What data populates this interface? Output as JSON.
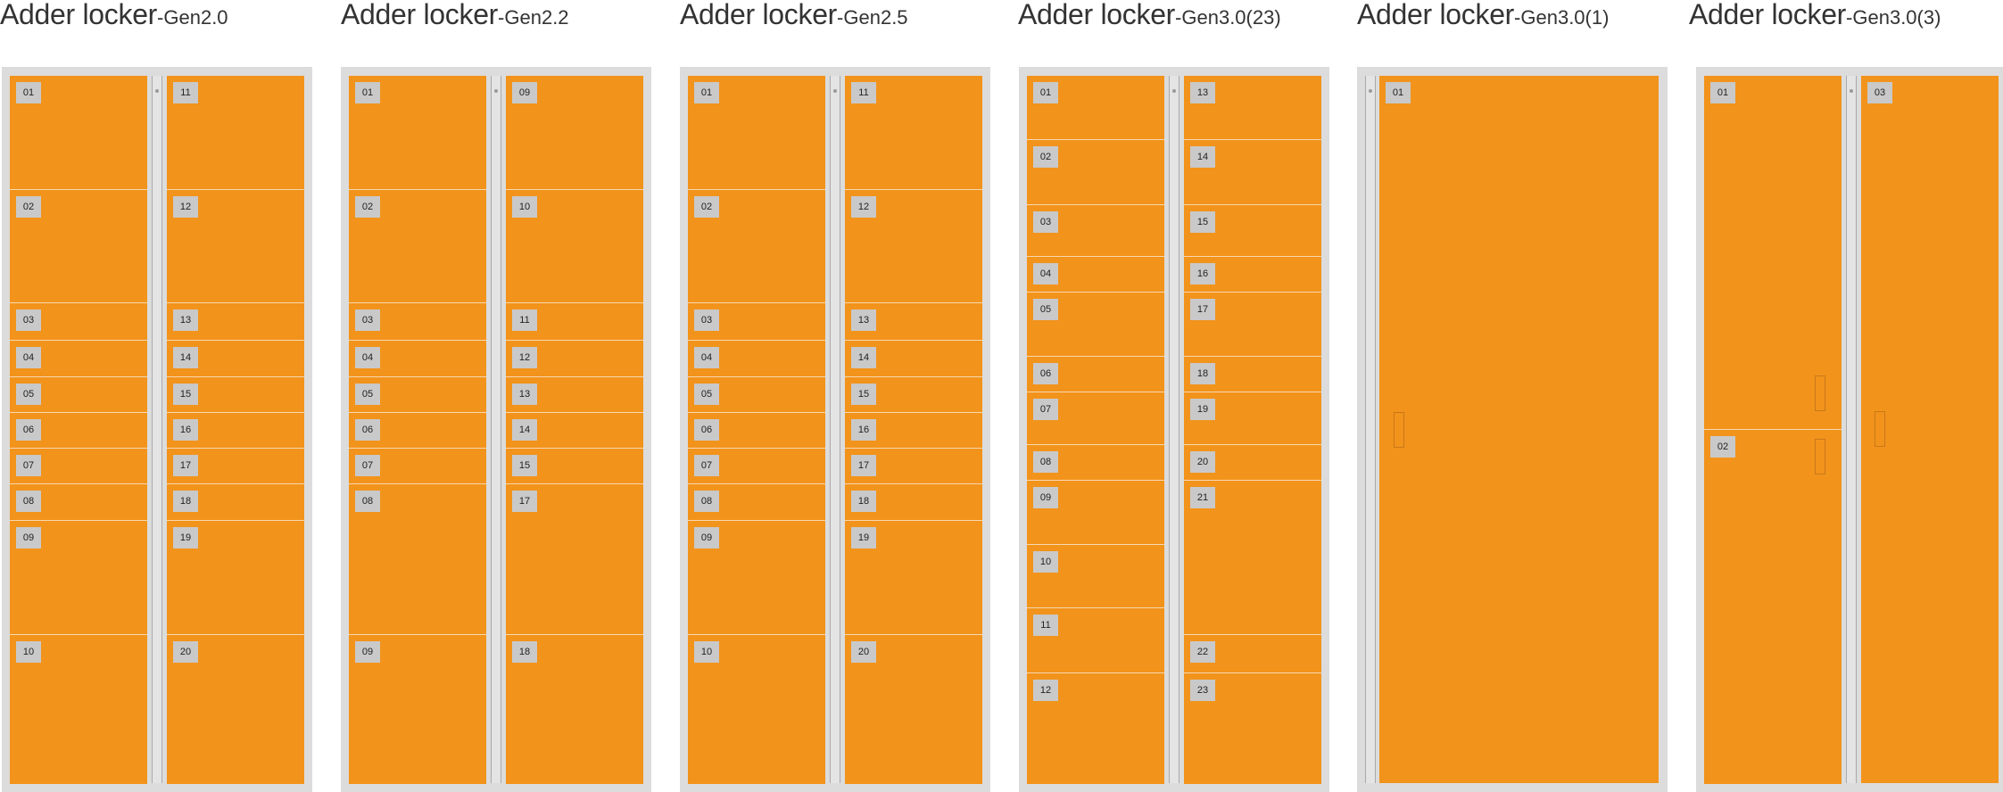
{
  "lockers": [
    {
      "id": "gen20",
      "title_main": "Adder locker",
      "title_sub": "-Gen2.0",
      "left": [
        "01",
        "02",
        "03",
        "04",
        "05",
        "06",
        "07",
        "08",
        "09",
        "10"
      ],
      "right": [
        "11",
        "12",
        "13",
        "14",
        "15",
        "16",
        "17",
        "18",
        "19",
        "20"
      ]
    },
    {
      "id": "gen22",
      "title_main": "Adder locker",
      "title_sub": "-Gen2.2",
      "left": [
        "01",
        "02",
        "03",
        "04",
        "05",
        "06",
        "07",
        "08",
        "09"
      ],
      "right": [
        "09",
        "10",
        "11",
        "12",
        "13",
        "14",
        "15",
        "17",
        "18"
      ]
    },
    {
      "id": "gen25",
      "title_main": "Adder locker",
      "title_sub": "-Gen2.5",
      "left": [
        "01",
        "02",
        "03",
        "04",
        "05",
        "06",
        "07",
        "08",
        "09",
        "10"
      ],
      "right": [
        "11",
        "12",
        "13",
        "14",
        "15",
        "16",
        "17",
        "18",
        "19",
        "20"
      ]
    },
    {
      "id": "gen30-23",
      "title_main": "Adder locker",
      "title_sub": "-Gen3.0(23)",
      "left": [
        "01",
        "02",
        "03",
        "04",
        "05",
        "06",
        "07",
        "08",
        "09",
        "10",
        "11",
        "12"
      ],
      "right": [
        "13",
        "14",
        "15",
        "16",
        "17",
        "18",
        "19",
        "20",
        "21",
        "22",
        "23"
      ]
    },
    {
      "id": "gen30-1",
      "title_main": "Adder locker",
      "title_sub": "-Gen3.0(1)",
      "right": [
        "01"
      ]
    },
    {
      "id": "gen30-3",
      "title_main": "Adder locker",
      "title_sub": "-Gen3.0(3)",
      "left": [
        "01",
        "02"
      ],
      "right": [
        "03"
      ]
    }
  ],
  "colors": {
    "door": "#f2931b",
    "frame": "#dcdcdc",
    "tag": "#c9c9c9",
    "title": "#333333"
  }
}
